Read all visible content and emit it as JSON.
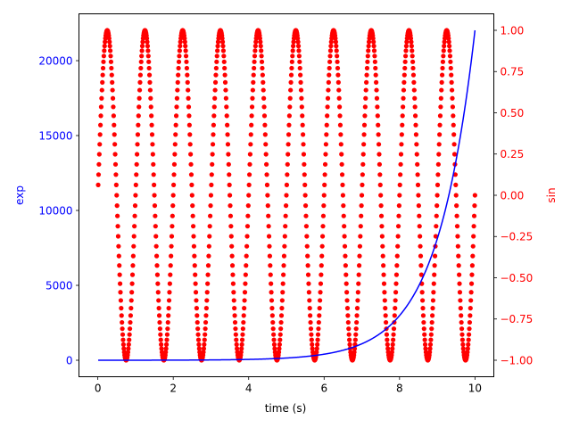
{
  "chart_data": {
    "type": "line",
    "xlabel": "time (s)",
    "xlim": [
      -0.5,
      10.5
    ],
    "x_ticks": [
      0,
      2,
      4,
      6,
      8,
      10
    ],
    "left_axis": {
      "label": "exp",
      "color": "#0000ff",
      "ylim": [
        -1101,
        23127
      ],
      "ticks": [
        0,
        5000,
        10000,
        15000,
        20000
      ],
      "tick_labels": [
        "0",
        "5000",
        "10000",
        "15000",
        "20000"
      ]
    },
    "right_axis": {
      "label": "sin",
      "color": "#ff0000",
      "ylim": [
        -1.1,
        1.1
      ],
      "ticks": [
        -1.0,
        -0.75,
        -0.5,
        -0.25,
        0.0,
        0.25,
        0.5,
        0.75,
        1.0
      ],
      "tick_labels": [
        "−1.00",
        "−0.75",
        "−0.50",
        "−0.25",
        "0.00",
        "0.25",
        "0.50",
        "0.75",
        "1.00"
      ]
    },
    "series": [
      {
        "axis": "left",
        "style": "line",
        "color": "#0000ff",
        "function": "exp(t)",
        "x_range": [
          0.01,
          10.0
        ],
        "step": 0.01,
        "samples": [
          {
            "x": 0,
            "y": 1
          },
          {
            "x": 2,
            "y": 7.4
          },
          {
            "x": 4,
            "y": 54.6
          },
          {
            "x": 6,
            "y": 403.4
          },
          {
            "x": 7,
            "y": 1096.6
          },
          {
            "x": 8,
            "y": 2981
          },
          {
            "x": 9,
            "y": 8103
          },
          {
            "x": 10,
            "y": 22026
          }
        ]
      },
      {
        "axis": "right",
        "style": "points",
        "color": "#ff0000",
        "function": "sin(2*pi*t)",
        "x_range": [
          0.01,
          10.0
        ],
        "step": 0.01,
        "samples": [
          {
            "x": 0.25,
            "y": 1.0
          },
          {
            "x": 0.5,
            "y": 0.0
          },
          {
            "x": 0.75,
            "y": -1.0
          },
          {
            "x": 1.0,
            "y": 0.0
          }
        ]
      }
    ]
  }
}
